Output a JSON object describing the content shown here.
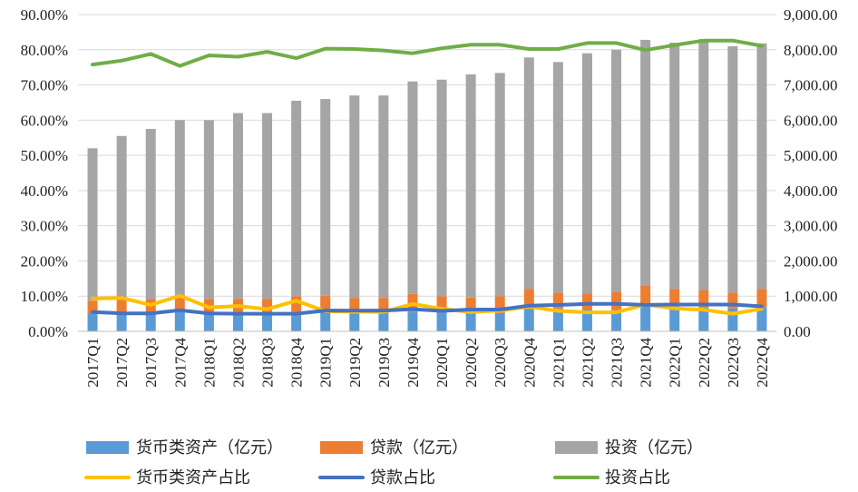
{
  "chart_data": {
    "type": "bar",
    "stacked": true,
    "categories": [
      "2017Q1",
      "2017Q2",
      "2017Q3",
      "2017Q4",
      "2018Q1",
      "2018Q2",
      "2018Q3",
      "2018Q4",
      "2019Q1",
      "2019Q2",
      "2019Q3",
      "2019Q4",
      "2020Q1",
      "2020Q2",
      "2020Q3",
      "2020Q4",
      "2021Q1",
      "2021Q2",
      "2021Q3",
      "2021Q4",
      "2022Q1",
      "2022Q2",
      "2022Q3",
      "2022Q4"
    ],
    "left_axis": {
      "min": 0,
      "max": 90,
      "step": 10,
      "ticks": [
        "0.00%",
        "10.00%",
        "20.00%",
        "30.00%",
        "40.00%",
        "50.00%",
        "60.00%",
        "70.00%",
        "80.00%",
        "90.00%"
      ]
    },
    "right_axis": {
      "min": 0,
      "max": 9000,
      "step": 1000,
      "ticks": [
        "0.00",
        "1,000.00",
        "2,000.00",
        "3,000.00",
        "4,000.00",
        "5,000.00",
        "6,000.00",
        "7,000.00",
        "8,000.00",
        "9,000.00"
      ]
    },
    "bar_series": [
      {
        "name": "货币类资产（亿元）",
        "color": "#5b9bd5",
        "values": [
          490,
          500,
          520,
          560,
          520,
          510,
          500,
          550,
          560,
          500,
          490,
          560,
          550,
          510,
          520,
          650,
          650,
          620,
          600,
          780,
          700,
          680,
          650,
          680
        ]
      },
      {
        "name": "贷款（亿元）",
        "color": "#ed7d31",
        "values": [
          380,
          400,
          400,
          400,
          400,
          410,
          420,
          450,
          450,
          450,
          460,
          500,
          450,
          450,
          480,
          550,
          450,
          450,
          520,
          520,
          500,
          500,
          450,
          520
        ]
      },
      {
        "name": "投资（亿元）",
        "color": "#a5a5a5",
        "values": [
          4330,
          4650,
          4830,
          5040,
          5080,
          5280,
          5280,
          5550,
          5590,
          5750,
          5750,
          6040,
          6150,
          6340,
          6340,
          6580,
          6550,
          6830,
          6880,
          6980,
          7000,
          7120,
          7000,
          6980
        ]
      }
    ],
    "line_series": [
      {
        "name": "货币类资产占比",
        "color": "#ffc000",
        "values": [
          9.3,
          9.5,
          7.5,
          10.1,
          6.8,
          7.2,
          6.3,
          8.7,
          5.7,
          5.6,
          5.5,
          7.8,
          6.4,
          5.5,
          5.9,
          7.0,
          5.8,
          5.4,
          5.4,
          7.6,
          6.5,
          6.1,
          5.0,
          6.4
        ]
      },
      {
        "name": "贷款占比",
        "color": "#4472c4",
        "values": [
          5.5,
          5.1,
          5.1,
          6.0,
          5.1,
          5.0,
          5.0,
          5.0,
          5.9,
          5.9,
          5.9,
          6.3,
          5.8,
          6.2,
          6.2,
          7.3,
          7.5,
          7.8,
          7.8,
          7.5,
          7.6,
          7.6,
          7.6,
          7.1
        ]
      },
      {
        "name": "投资占比",
        "color": "#70ad47",
        "values": [
          75.8,
          76.9,
          78.8,
          75.4,
          78.4,
          78.0,
          79.4,
          77.6,
          80.3,
          80.2,
          79.8,
          79.0,
          80.4,
          81.4,
          81.4,
          80.2,
          80.2,
          81.9,
          81.9,
          79.9,
          81.3,
          82.6,
          82.6,
          81.1
        ]
      }
    ],
    "legend_position": "bottom",
    "grid": "horizontal",
    "title": "",
    "xlabel": "",
    "ylabel": ""
  }
}
